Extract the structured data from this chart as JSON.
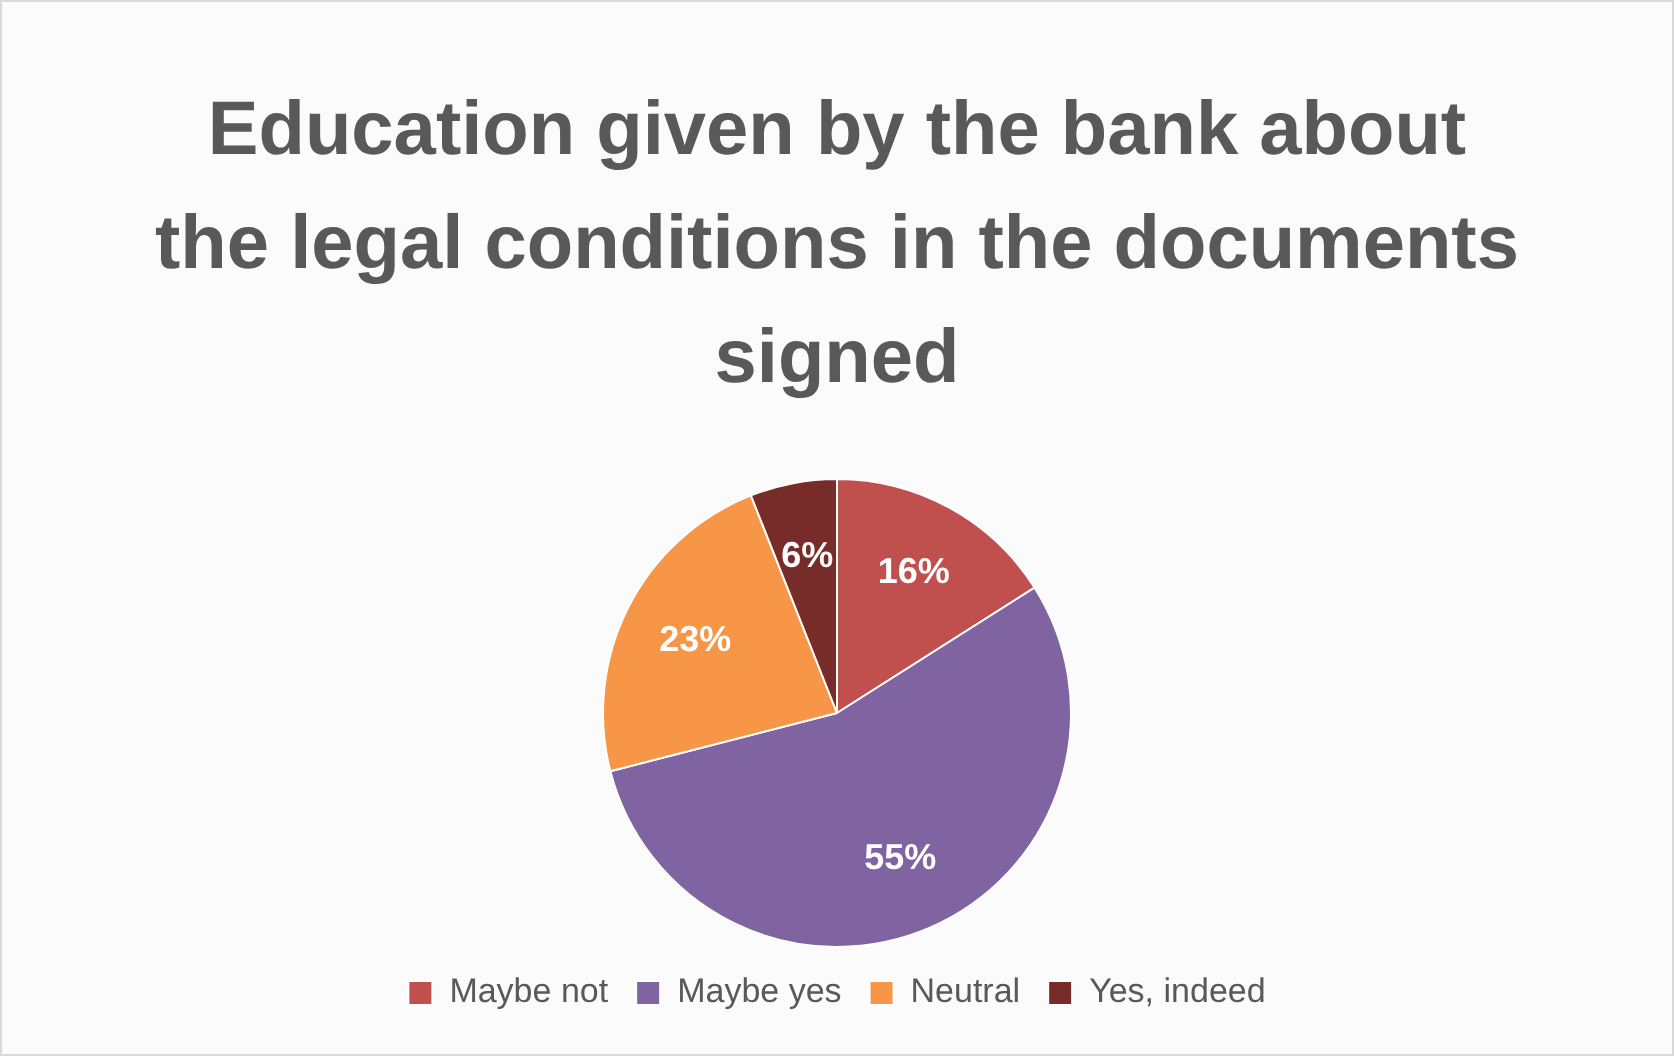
{
  "chart_data": {
    "type": "pie",
    "title": "Education given by the bank about the legal conditions in the documents signed",
    "categories": [
      "Maybe not",
      "Maybe yes",
      "Neutral",
      "Yes, indeed"
    ],
    "values": [
      16,
      55,
      23,
      6
    ],
    "value_labels": [
      "16%",
      "55%",
      "23%",
      "6%"
    ],
    "colors": [
      "#c0504d",
      "#8064a2",
      "#f79646",
      "#772c2a"
    ],
    "legend": "bottom"
  }
}
